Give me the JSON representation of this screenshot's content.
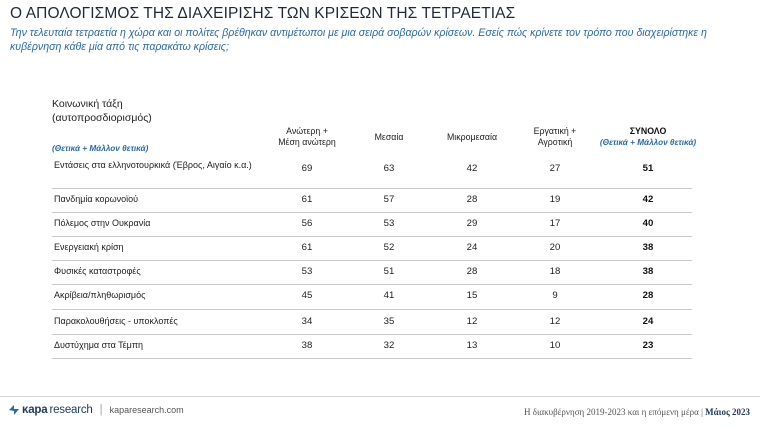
{
  "title": "Ο ΑΠΟΛΟΓΙΣΜΟΣ ΤΗΣ ΔΙΑΧΕΙΡΙΣΗΣ ΤΩΝ ΚΡΙΣΕΩΝ ΤΗΣ ΤΕΤΡΑΕΤΙΑΣ",
  "subtitle": "Την τελευταία τετραετία η χώρα και οι πολίτες βρέθηκαν αντιμέτωποι με μια σειρά σοβαρών κρίσεων. Εσείς πώς κρίνετε τον τρόπο που διαχειρίστηκε η κυβέρνηση κάθε μία από τις παρακάτω κρίσεις;",
  "group": {
    "label_line1": "Κοινωνική τάξη",
    "label_line2": "(αυτοπροσδιορισμός)",
    "note": "(Θετικά + Μάλλον θετικά)"
  },
  "columns": [
    {
      "line1": "Ανώτερη +",
      "line2": "Μέση ανώτερη"
    },
    {
      "line1": "Μεσαία",
      "line2": ""
    },
    {
      "line1": "Μικρομεσαία",
      "line2": ""
    },
    {
      "line1": "Εργατική +",
      "line2": "Αγροτική"
    },
    {
      "line1": "ΣΥΝΟΛΟ",
      "line2": "(Θετικά + Μάλλον θετικά)"
    }
  ],
  "rows": [
    {
      "label": "Εντάσεις στα ελληνοτουρκικά (Έβρος, Αιγαίο κ.α.)",
      "v": [
        "69",
        "63",
        "42",
        "27",
        "51"
      ]
    },
    {
      "label": "Πανδημία κορωνοϊού",
      "v": [
        "61",
        "57",
        "28",
        "19",
        "42"
      ]
    },
    {
      "label": "Πόλεμος στην Ουκρανία",
      "v": [
        "56",
        "53",
        "29",
        "17",
        "40"
      ]
    },
    {
      "label": "Ενεργειακή κρίση",
      "v": [
        "61",
        "52",
        "24",
        "20",
        "38"
      ]
    },
    {
      "label": "Φυσικές καταστροφές",
      "v": [
        "53",
        "51",
        "28",
        "18",
        "38"
      ]
    },
    {
      "label": "Ακρίβεια/πληθωρισμός",
      "v": [
        "45",
        "41",
        "15",
        "9",
        "28"
      ]
    },
    {
      "label": "Παρακολουθήσεις - υποκλοπές",
      "v": [
        "34",
        "35",
        "12",
        "12",
        "24"
      ]
    },
    {
      "label": "Δυστύχημα στα Τέμπη",
      "v": [
        "38",
        "32",
        "13",
        "10",
        "23"
      ]
    }
  ],
  "footer": {
    "brand_bold": "κapa",
    "brand_light": "research",
    "separator": "|",
    "url": "kaparesearch.com",
    "right_text": "Η διακυβέρνηση 2019-2023 και η επόμενη μέρα",
    "right_sep": "|",
    "right_date": "Μάιος 2023",
    "accent": "#1e3a5f",
    "link_blue": "#2a6aa8"
  }
}
